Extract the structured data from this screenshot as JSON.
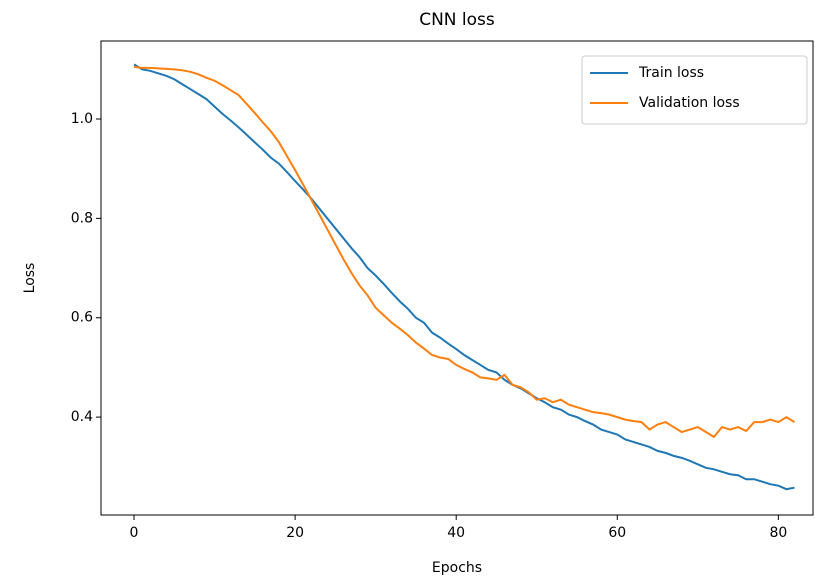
{
  "chart_data": {
    "type": "line",
    "title": "CNN loss",
    "xlabel": "Epochs",
    "ylabel": "Loss",
    "x": [
      0,
      1,
      2,
      3,
      4,
      5,
      6,
      7,
      8,
      9,
      10,
      11,
      12,
      13,
      14,
      15,
      16,
      17,
      18,
      19,
      20,
      21,
      22,
      23,
      24,
      25,
      26,
      27,
      28,
      29,
      30,
      31,
      32,
      33,
      34,
      35,
      36,
      37,
      38,
      39,
      40,
      41,
      42,
      43,
      44,
      45,
      46,
      47,
      48,
      49,
      50,
      51,
      52,
      53,
      54,
      55,
      56,
      57,
      58,
      59,
      60,
      61,
      62,
      63,
      64,
      65,
      66,
      67,
      68,
      69,
      70,
      71,
      72,
      73,
      74,
      75,
      76,
      77,
      78,
      79,
      80,
      81,
      82
    ],
    "series": [
      {
        "name": "Train loss",
        "color": "#1f77b4",
        "values": [
          1.11,
          1.1,
          1.097,
          1.092,
          1.087,
          1.08,
          1.07,
          1.06,
          1.05,
          1.04,
          1.025,
          1.01,
          0.997,
          0.983,
          0.968,
          0.953,
          0.938,
          0.922,
          0.91,
          0.893,
          0.875,
          0.858,
          0.84,
          0.82,
          0.8,
          0.78,
          0.76,
          0.74,
          0.722,
          0.7,
          0.685,
          0.668,
          0.65,
          0.633,
          0.618,
          0.6,
          0.59,
          0.57,
          0.56,
          0.548,
          0.537,
          0.525,
          0.515,
          0.505,
          0.495,
          0.49,
          0.475,
          0.465,
          0.458,
          0.448,
          0.438,
          0.43,
          0.42,
          0.415,
          0.405,
          0.4,
          0.392,
          0.385,
          0.375,
          0.37,
          0.365,
          0.355,
          0.35,
          0.345,
          0.34,
          0.332,
          0.328,
          0.322,
          0.318,
          0.312,
          0.305,
          0.298,
          0.295,
          0.29,
          0.285,
          0.283,
          0.275,
          0.275,
          0.27,
          0.265,
          0.262,
          0.255,
          0.258
        ]
      },
      {
        "name": "Validation loss",
        "color": "#ff7f0e",
        "values": [
          1.105,
          1.103,
          1.103,
          1.102,
          1.101,
          1.1,
          1.098,
          1.095,
          1.09,
          1.083,
          1.077,
          1.068,
          1.058,
          1.048,
          1.03,
          1.012,
          0.993,
          0.975,
          0.953,
          0.925,
          0.897,
          0.868,
          0.838,
          0.808,
          0.778,
          0.748,
          0.718,
          0.69,
          0.665,
          0.645,
          0.62,
          0.605,
          0.59,
          0.578,
          0.565,
          0.55,
          0.538,
          0.525,
          0.52,
          0.517,
          0.505,
          0.497,
          0.49,
          0.48,
          0.478,
          0.475,
          0.485,
          0.465,
          0.46,
          0.45,
          0.435,
          0.438,
          0.43,
          0.435,
          0.425,
          0.42,
          0.415,
          0.41,
          0.408,
          0.405,
          0.4,
          0.395,
          0.392,
          0.39,
          0.375,
          0.385,
          0.39,
          0.38,
          0.37,
          0.375,
          0.38,
          0.37,
          0.36,
          0.38,
          0.375,
          0.38,
          0.372,
          0.39,
          0.39,
          0.395,
          0.39,
          0.4,
          0.39
        ]
      }
    ],
    "xlim": [
      -4.1,
      84.3
    ],
    "xticks": [
      0,
      20,
      40,
      60,
      80
    ],
    "ylim": [
      0.203,
      1.157
    ],
    "yticks": [
      0.4,
      0.6,
      0.8,
      {
        "value": 1.0,
        "label": "1.0"
      }
    ],
    "legend": "upper right",
    "grid": false
  }
}
